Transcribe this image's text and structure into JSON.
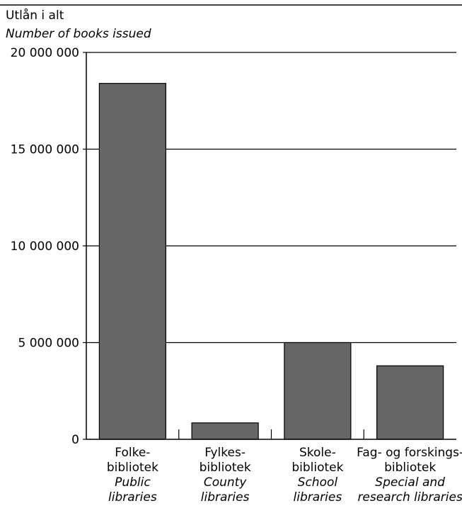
{
  "chart_data": {
    "type": "bar",
    "title": "",
    "ylabel": {
      "norwegian": "Utlån i alt",
      "english": "Number of books issued"
    },
    "xlabel": "",
    "ylim": [
      0,
      20000000
    ],
    "yticks": [
      0,
      5000000,
      10000000,
      15000000,
      20000000
    ],
    "ytick_labels": [
      "0",
      "5 000 000",
      "10 000 000",
      "15 000 000",
      "20 000 000"
    ],
    "grid": true,
    "bar_color": "#666666",
    "categories": [
      {
        "norwegian": [
          "Folke-",
          "bibliotek"
        ],
        "english": [
          "Public",
          "libraries"
        ]
      },
      {
        "norwegian": [
          "Fylkes-",
          "bibliotek"
        ],
        "english": [
          "County",
          "libraries"
        ]
      },
      {
        "norwegian": [
          "Skole-",
          "bibliotek"
        ],
        "english": [
          "School",
          "libraries"
        ]
      },
      {
        "norwegian": [
          "Fag- og forskings-",
          "bibliotek"
        ],
        "english": [
          "Special and",
          "research libraries"
        ]
      }
    ],
    "values": [
      18400000,
      850000,
      5000000,
      3800000
    ]
  }
}
